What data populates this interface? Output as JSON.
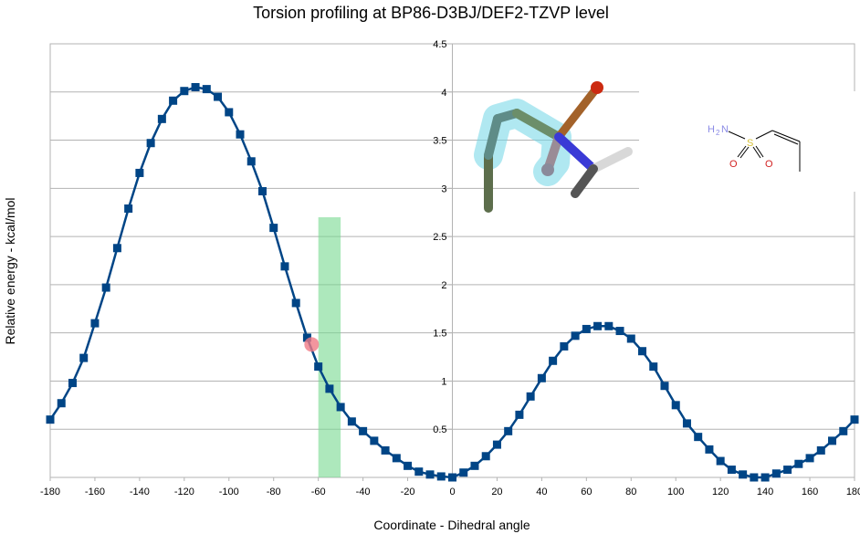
{
  "chart_data": {
    "type": "line",
    "title": "Torsion profiling at BP86-D3BJ/DEF2-TZVP level",
    "xlabel": "Coordinate - Dihedral angle",
    "ylabel": "Relative energy - kcal/mol",
    "xlim": [
      -180,
      180
    ],
    "ylim": [
      0,
      4.5
    ],
    "grid": true,
    "line_color": "#004586",
    "x_ticks": [
      -180,
      -160,
      -140,
      -120,
      -100,
      -80,
      -60,
      -40,
      -20,
      0,
      20,
      40,
      60,
      80,
      100,
      120,
      140,
      160,
      180
    ],
    "x_tick_labels": [
      "-180",
      "-160",
      "-140",
      "-120",
      "-100",
      "-80",
      "-60",
      "-40",
      "-20",
      "0",
      "20",
      "40",
      "60",
      "80",
      "100",
      "120",
      "140",
      "160",
      "180"
    ],
    "y_ticks": [
      0.5,
      1,
      1.5,
      2,
      2.5,
      3,
      3.5,
      4,
      4.5
    ],
    "y_tick_labels": [
      "0.5",
      "1",
      "1.5",
      "2",
      "2.5",
      "3",
      "3.5",
      "4",
      "4.5"
    ],
    "series": [
      {
        "name": "Relative energy",
        "x": [
          -180,
          -175,
          -170,
          -165,
          -160,
          -155,
          -150,
          -145,
          -140,
          -135,
          -130,
          -125,
          -120,
          -115,
          -110,
          -105,
          -100,
          -95,
          -90,
          -85,
          -80,
          -75,
          -70,
          -65,
          -60,
          -55,
          -50,
          -45,
          -40,
          -35,
          -30,
          -25,
          -20,
          -15,
          -10,
          -5,
          0,
          5,
          10,
          15,
          20,
          25,
          30,
          35,
          40,
          45,
          50,
          55,
          60,
          65,
          70,
          75,
          80,
          85,
          90,
          95,
          100,
          105,
          110,
          115,
          120,
          125,
          130,
          135,
          140,
          145,
          150,
          155,
          160,
          165,
          170,
          175,
          180
        ],
        "y": [
          0.6,
          0.77,
          0.98,
          1.24,
          1.6,
          1.97,
          2.38,
          2.79,
          3.16,
          3.47,
          3.72,
          3.91,
          4.01,
          4.05,
          4.03,
          3.95,
          3.79,
          3.56,
          3.28,
          2.97,
          2.59,
          2.19,
          1.81,
          1.45,
          1.15,
          0.92,
          0.73,
          0.58,
          0.48,
          0.38,
          0.28,
          0.2,
          0.12,
          0.06,
          0.03,
          0.01,
          0.0,
          0.05,
          0.12,
          0.22,
          0.34,
          0.48,
          0.65,
          0.84,
          1.03,
          1.21,
          1.36,
          1.47,
          1.54,
          1.57,
          1.57,
          1.52,
          1.44,
          1.31,
          1.15,
          0.95,
          0.75,
          0.56,
          0.42,
          0.29,
          0.17,
          0.08,
          0.03,
          0.0,
          0.0,
          0.04,
          0.08,
          0.14,
          0.2,
          0.28,
          0.38,
          0.48,
          0.6
        ]
      }
    ],
    "annotations": {
      "highlight_band": {
        "x_from": -60,
        "x_to": -50,
        "y_top": 2.7,
        "color": "#77d88f"
      },
      "current_point": {
        "x": -63,
        "y": 1.38,
        "color": "#f07b86"
      }
    }
  },
  "molecule_2d": {
    "labels": {
      "amine": "H2N",
      "amine_h": "H",
      "amine_sub": "2",
      "amine_n": "N",
      "sulfur": "S",
      "oxygen_left": "O",
      "oxygen_right": "O"
    },
    "colors": {
      "nitrogen": "#8b8be6",
      "sulfur": "#d6c13a",
      "oxygen": "#d22222",
      "bond": "#000000"
    }
  },
  "molecule_3d": {
    "description_colors": {
      "carbon": "#6a8a7a",
      "highlight": "#6fd6e6",
      "nitrogen": "#3a3ad6",
      "oxygen": "#cc2a10",
      "sulfur": "#b59a2a",
      "hydrogen": "#dddddd"
    }
  }
}
